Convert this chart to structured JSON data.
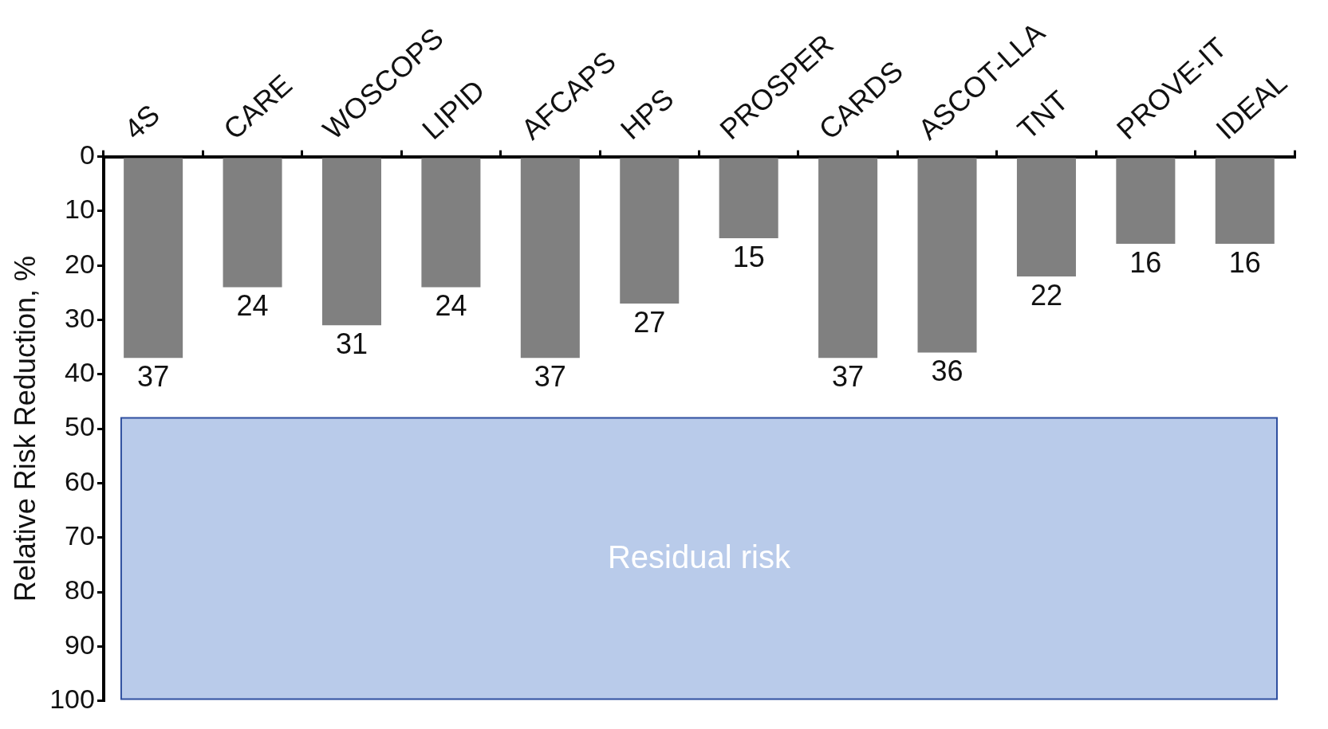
{
  "chart_data": {
    "type": "bar",
    "ylabel": "Relative Risk Reduction, %",
    "categories": [
      "4S",
      "CARE",
      "WOSCOPS",
      "LIPID",
      "AFCAPS",
      "HPS",
      "PROSPER",
      "CARDS",
      "ASCOT-LLA",
      "TNT",
      "PROVE-IT",
      "IDEAL"
    ],
    "values": [
      37,
      24,
      31,
      24,
      37,
      27,
      15,
      37,
      36,
      22,
      16,
      16
    ],
    "color": "#808080",
    "ylim": [
      100,
      0
    ],
    "yticks": [
      0,
      10,
      20,
      30,
      40,
      50,
      60,
      70,
      80,
      90,
      100
    ],
    "data_labels": true,
    "grid": false,
    "legend": false,
    "bands": [
      {
        "axis": "y",
        "from": 48,
        "to": 100,
        "label": "Residual risk",
        "color": "#b9cbea"
      }
    ]
  }
}
